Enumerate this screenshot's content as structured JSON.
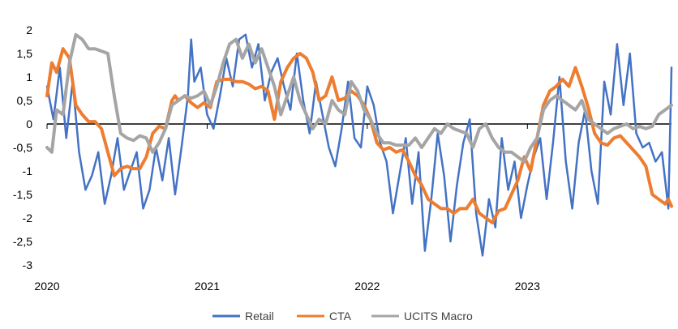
{
  "chart_data": {
    "type": "line",
    "title": "",
    "xlabel": "",
    "ylabel": "",
    "ylim": [
      -3,
      2
    ],
    "xlim": [
      2020,
      2023.9
    ],
    "y_ticks": [
      2,
      1.5,
      1,
      0.5,
      0,
      -0.5,
      -1,
      -1.5,
      -2,
      -2.5,
      -3
    ],
    "y_tick_labels": [
      "2",
      "1,5",
      "1",
      "0,5",
      "0",
      "-0,5",
      "-1",
      "-1,5",
      "-2",
      "-2,5",
      "-3"
    ],
    "x_ticks": [
      2020,
      2021,
      2022,
      2023
    ],
    "x_tick_labels": [
      "2020",
      "2021",
      "2022",
      "2023"
    ],
    "legend_position": "bottom",
    "series": [
      {
        "name": "Retail",
        "color": "#4472C4",
        "x": [
          2020.0,
          2020.04,
          2020.08,
          2020.12,
          2020.16,
          2020.2,
          2020.24,
          2020.28,
          2020.32,
          2020.36,
          2020.4,
          2020.44,
          2020.48,
          2020.52,
          2020.56,
          2020.6,
          2020.64,
          2020.68,
          2020.72,
          2020.76,
          2020.8,
          2020.84,
          2020.88,
          2020.9,
          2020.92,
          2020.96,
          2021.0,
          2021.04,
          2021.08,
          2021.12,
          2021.16,
          2021.2,
          2021.24,
          2021.28,
          2021.32,
          2021.36,
          2021.4,
          2021.44,
          2021.48,
          2021.52,
          2021.56,
          2021.6,
          2021.64,
          2021.68,
          2021.72,
          2021.76,
          2021.8,
          2021.84,
          2021.88,
          2021.92,
          2021.96,
          2022.0,
          2022.04,
          2022.08,
          2022.12,
          2022.16,
          2022.2,
          2022.24,
          2022.28,
          2022.32,
          2022.36,
          2022.4,
          2022.44,
          2022.48,
          2022.52,
          2022.56,
          2022.6,
          2022.64,
          2022.68,
          2022.72,
          2022.76,
          2022.8,
          2022.84,
          2022.88,
          2022.92,
          2022.96,
          2023.0,
          2023.04,
          2023.08,
          2023.12,
          2023.16,
          2023.2,
          2023.24,
          2023.28,
          2023.32,
          2023.36,
          2023.4,
          2023.44,
          2023.48,
          2023.52,
          2023.56,
          2023.6,
          2023.64,
          2023.68,
          2023.72,
          2023.76,
          2023.8,
          2023.84,
          2023.88,
          2023.9
        ],
        "values": [
          0.8,
          0.1,
          1.2,
          -0.3,
          0.9,
          -0.6,
          -1.4,
          -1.1,
          -0.6,
          -1.7,
          -1.1,
          -0.3,
          -1.4,
          -1.0,
          -0.6,
          -1.8,
          -1.4,
          -0.5,
          -1.2,
          -0.3,
          -1.5,
          -0.5,
          0.6,
          1.8,
          0.9,
          1.2,
          0.2,
          -0.1,
          0.6,
          1.4,
          0.8,
          1.8,
          1.9,
          1.2,
          1.7,
          0.5,
          1.1,
          1.4,
          0.8,
          0.3,
          1.5,
          0.5,
          -0.2,
          0.9,
          0.2,
          -0.5,
          -0.9,
          -0.1,
          0.9,
          -0.3,
          -0.5,
          0.8,
          0.4,
          -0.4,
          -0.8,
          -1.9,
          -1.1,
          -0.3,
          -1.7,
          -0.6,
          -2.7,
          -1.6,
          -0.2,
          -1.1,
          -2.5,
          -1.3,
          -0.4,
          0.1,
          -1.9,
          -2.8,
          -1.6,
          -2.2,
          -0.3,
          -1.4,
          -0.8,
          -2.0,
          -1.3,
          -0.7,
          -0.3,
          -1.6,
          -0.4,
          1.0,
          -0.8,
          -1.8,
          -0.4,
          0.3,
          -1.0,
          -1.7,
          0.9,
          0.2,
          1.7,
          0.4,
          1.5,
          -0.2,
          -0.5,
          -0.4,
          -0.8,
          -0.6,
          -1.8,
          1.2
        ]
      },
      {
        "name": "CTA",
        "color": "#ED7D31",
        "x": [
          2020.0,
          2020.03,
          2020.06,
          2020.1,
          2020.14,
          2020.18,
          2020.22,
          2020.26,
          2020.3,
          2020.34,
          2020.38,
          2020.42,
          2020.46,
          2020.5,
          2020.54,
          2020.58,
          2020.62,
          2020.66,
          2020.7,
          2020.74,
          2020.78,
          2020.8,
          2020.82,
          2020.86,
          2020.9,
          2020.94,
          2020.98,
          2021.02,
          2021.06,
          2021.1,
          2021.14,
          2021.18,
          2021.22,
          2021.26,
          2021.3,
          2021.34,
          2021.38,
          2021.42,
          2021.46,
          2021.5,
          2021.54,
          2021.58,
          2021.62,
          2021.66,
          2021.7,
          2021.74,
          2021.78,
          2021.82,
          2021.86,
          2021.9,
          2021.94,
          2021.98,
          2022.02,
          2022.06,
          2022.1,
          2022.14,
          2022.18,
          2022.22,
          2022.26,
          2022.3,
          2022.34,
          2022.38,
          2022.42,
          2022.46,
          2022.5,
          2022.54,
          2022.58,
          2022.62,
          2022.66,
          2022.7,
          2022.74,
          2022.78,
          2022.82,
          2022.86,
          2022.9,
          2022.94,
          2022.98,
          2023.02,
          2023.06,
          2023.1,
          2023.14,
          2023.18,
          2023.22,
          2023.26,
          2023.3,
          2023.34,
          2023.38,
          2023.42,
          2023.46,
          2023.5,
          2023.54,
          2023.58,
          2023.62,
          2023.66,
          2023.7,
          2023.74,
          2023.78,
          2023.82,
          2023.86,
          2023.88,
          2023.9
        ],
        "values": [
          0.6,
          1.3,
          1.1,
          1.6,
          1.4,
          0.4,
          0.2,
          0.05,
          0.05,
          -0.1,
          -0.6,
          -1.1,
          -0.95,
          -0.9,
          -0.95,
          -0.95,
          -0.7,
          -0.2,
          -0.05,
          -0.1,
          0.5,
          0.6,
          0.5,
          0.6,
          0.45,
          0.35,
          0.45,
          0.35,
          0.9,
          0.95,
          0.95,
          0.9,
          0.9,
          0.85,
          0.75,
          0.8,
          0.7,
          0.1,
          0.9,
          1.2,
          1.4,
          1.5,
          1.4,
          1.1,
          0.5,
          0.6,
          1.0,
          0.5,
          0.55,
          0.7,
          0.6,
          0.4,
          0.1,
          -0.4,
          -0.55,
          -0.5,
          -0.6,
          -0.55,
          -0.8,
          -1.1,
          -1.3,
          -1.6,
          -1.7,
          -1.8,
          -1.8,
          -1.9,
          -1.8,
          -1.8,
          -1.6,
          -1.9,
          -2.0,
          -2.1,
          -1.85,
          -1.8,
          -1.5,
          -1.2,
          -0.7,
          -1.0,
          -0.3,
          0.4,
          0.7,
          0.8,
          0.95,
          0.8,
          1.2,
          0.8,
          0.35,
          -0.2,
          -0.4,
          -0.45,
          -0.3,
          -0.25,
          -0.4,
          -0.55,
          -0.7,
          -0.9,
          -1.5,
          -1.6,
          -1.7,
          -1.6,
          -1.75
        ]
      },
      {
        "name": "UCITS Macro",
        "color": "#A5A5A5",
        "x": [
          2020.0,
          2020.03,
          2020.06,
          2020.1,
          2020.14,
          2020.18,
          2020.22,
          2020.26,
          2020.3,
          2020.34,
          2020.38,
          2020.42,
          2020.46,
          2020.5,
          2020.54,
          2020.58,
          2020.62,
          2020.66,
          2020.7,
          2020.74,
          2020.78,
          2020.82,
          2020.86,
          2020.9,
          2020.94,
          2020.98,
          2021.02,
          2021.06,
          2021.1,
          2021.14,
          2021.18,
          2021.22,
          2021.26,
          2021.3,
          2021.34,
          2021.38,
          2021.42,
          2021.46,
          2021.5,
          2021.54,
          2021.58,
          2021.62,
          2021.66,
          2021.7,
          2021.74,
          2021.78,
          2021.82,
          2021.86,
          2021.9,
          2021.94,
          2021.98,
          2022.02,
          2022.06,
          2022.1,
          2022.14,
          2022.18,
          2022.22,
          2022.26,
          2022.3,
          2022.34,
          2022.38,
          2022.42,
          2022.46,
          2022.5,
          2022.54,
          2022.58,
          2022.62,
          2022.66,
          2022.7,
          2022.74,
          2022.78,
          2022.82,
          2022.86,
          2022.9,
          2022.94,
          2022.98,
          2023.02,
          2023.06,
          2023.1,
          2023.14,
          2023.18,
          2023.22,
          2023.26,
          2023.3,
          2023.34,
          2023.38,
          2023.42,
          2023.46,
          2023.5,
          2023.54,
          2023.58,
          2023.62,
          2023.66,
          2023.7,
          2023.74,
          2023.78,
          2023.82,
          2023.86,
          2023.9
        ],
        "values": [
          -0.5,
          -0.6,
          0.3,
          0.2,
          1.3,
          1.9,
          1.8,
          1.6,
          1.6,
          1.55,
          1.5,
          0.6,
          -0.2,
          -0.3,
          -0.35,
          -0.25,
          -0.3,
          -0.6,
          -0.4,
          -0.1,
          0.4,
          0.5,
          0.6,
          0.55,
          0.6,
          0.7,
          0.4,
          0.8,
          1.3,
          1.7,
          1.8,
          1.4,
          1.7,
          1.3,
          1.6,
          1.2,
          0.8,
          0.2,
          0.6,
          1.0,
          0.5,
          0.2,
          -0.1,
          0.1,
          0.0,
          0.5,
          0.3,
          0.2,
          0.9,
          0.7,
          0.3,
          0.1,
          -0.2,
          -0.4,
          -0.4,
          -0.45,
          -0.45,
          -0.45,
          -0.3,
          -0.5,
          -0.3,
          -0.1,
          -0.2,
          0.0,
          -0.1,
          -0.15,
          -0.2,
          -0.5,
          -0.1,
          0.0,
          -0.3,
          -0.5,
          -0.6,
          -0.6,
          -0.7,
          -0.8,
          -0.5,
          -0.3,
          0.3,
          0.5,
          0.6,
          0.5,
          0.4,
          0.3,
          0.5,
          0.1,
          0.0,
          -0.1,
          -0.2,
          -0.1,
          -0.05,
          0.0,
          -0.1,
          -0.05,
          -0.1,
          -0.05,
          0.2,
          0.3,
          0.4
        ]
      }
    ]
  }
}
